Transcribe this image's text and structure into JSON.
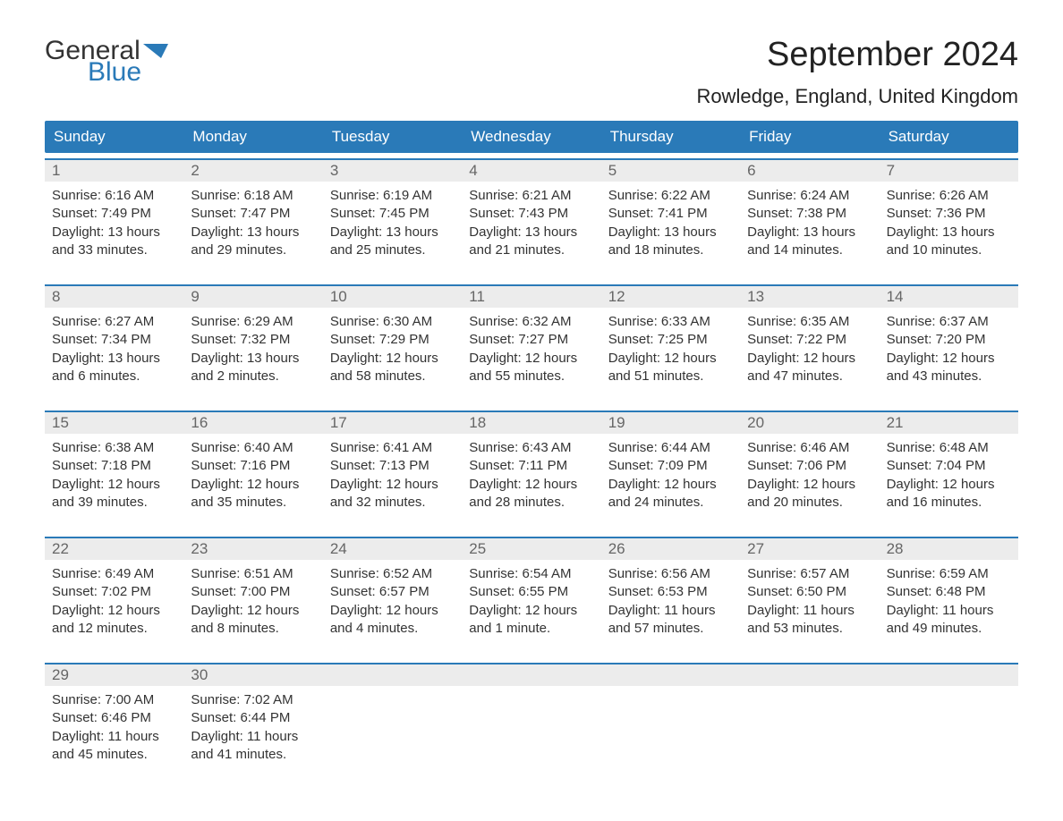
{
  "logo": {
    "top_text": "General",
    "bottom_text": "Blue",
    "flag_color": "#2a7ab8",
    "top_color": "#333333",
    "bottom_color": "#2a7ab8"
  },
  "title": "September 2024",
  "location": "Rowledge, England, United Kingdom",
  "weekday_header_bg": "#2a7ab8",
  "weekday_header_fg": "#ffffff",
  "day_number_bg": "#ececec",
  "day_number_border": "#2a7ab8",
  "text_color": "#333333",
  "weekdays": [
    "Sunday",
    "Monday",
    "Tuesday",
    "Wednesday",
    "Thursday",
    "Friday",
    "Saturday"
  ],
  "weeks": [
    [
      {
        "day": "1",
        "sunrise": "Sunrise: 6:16 AM",
        "sunset": "Sunset: 7:49 PM",
        "daylight1": "Daylight: 13 hours",
        "daylight2": "and 33 minutes."
      },
      {
        "day": "2",
        "sunrise": "Sunrise: 6:18 AM",
        "sunset": "Sunset: 7:47 PM",
        "daylight1": "Daylight: 13 hours",
        "daylight2": "and 29 minutes."
      },
      {
        "day": "3",
        "sunrise": "Sunrise: 6:19 AM",
        "sunset": "Sunset: 7:45 PM",
        "daylight1": "Daylight: 13 hours",
        "daylight2": "and 25 minutes."
      },
      {
        "day": "4",
        "sunrise": "Sunrise: 6:21 AM",
        "sunset": "Sunset: 7:43 PM",
        "daylight1": "Daylight: 13 hours",
        "daylight2": "and 21 minutes."
      },
      {
        "day": "5",
        "sunrise": "Sunrise: 6:22 AM",
        "sunset": "Sunset: 7:41 PM",
        "daylight1": "Daylight: 13 hours",
        "daylight2": "and 18 minutes."
      },
      {
        "day": "6",
        "sunrise": "Sunrise: 6:24 AM",
        "sunset": "Sunset: 7:38 PM",
        "daylight1": "Daylight: 13 hours",
        "daylight2": "and 14 minutes."
      },
      {
        "day": "7",
        "sunrise": "Sunrise: 6:26 AM",
        "sunset": "Sunset: 7:36 PM",
        "daylight1": "Daylight: 13 hours",
        "daylight2": "and 10 minutes."
      }
    ],
    [
      {
        "day": "8",
        "sunrise": "Sunrise: 6:27 AM",
        "sunset": "Sunset: 7:34 PM",
        "daylight1": "Daylight: 13 hours",
        "daylight2": "and 6 minutes."
      },
      {
        "day": "9",
        "sunrise": "Sunrise: 6:29 AM",
        "sunset": "Sunset: 7:32 PM",
        "daylight1": "Daylight: 13 hours",
        "daylight2": "and 2 minutes."
      },
      {
        "day": "10",
        "sunrise": "Sunrise: 6:30 AM",
        "sunset": "Sunset: 7:29 PM",
        "daylight1": "Daylight: 12 hours",
        "daylight2": "and 58 minutes."
      },
      {
        "day": "11",
        "sunrise": "Sunrise: 6:32 AM",
        "sunset": "Sunset: 7:27 PM",
        "daylight1": "Daylight: 12 hours",
        "daylight2": "and 55 minutes."
      },
      {
        "day": "12",
        "sunrise": "Sunrise: 6:33 AM",
        "sunset": "Sunset: 7:25 PM",
        "daylight1": "Daylight: 12 hours",
        "daylight2": "and 51 minutes."
      },
      {
        "day": "13",
        "sunrise": "Sunrise: 6:35 AM",
        "sunset": "Sunset: 7:22 PM",
        "daylight1": "Daylight: 12 hours",
        "daylight2": "and 47 minutes."
      },
      {
        "day": "14",
        "sunrise": "Sunrise: 6:37 AM",
        "sunset": "Sunset: 7:20 PM",
        "daylight1": "Daylight: 12 hours",
        "daylight2": "and 43 minutes."
      }
    ],
    [
      {
        "day": "15",
        "sunrise": "Sunrise: 6:38 AM",
        "sunset": "Sunset: 7:18 PM",
        "daylight1": "Daylight: 12 hours",
        "daylight2": "and 39 minutes."
      },
      {
        "day": "16",
        "sunrise": "Sunrise: 6:40 AM",
        "sunset": "Sunset: 7:16 PM",
        "daylight1": "Daylight: 12 hours",
        "daylight2": "and 35 minutes."
      },
      {
        "day": "17",
        "sunrise": "Sunrise: 6:41 AM",
        "sunset": "Sunset: 7:13 PM",
        "daylight1": "Daylight: 12 hours",
        "daylight2": "and 32 minutes."
      },
      {
        "day": "18",
        "sunrise": "Sunrise: 6:43 AM",
        "sunset": "Sunset: 7:11 PM",
        "daylight1": "Daylight: 12 hours",
        "daylight2": "and 28 minutes."
      },
      {
        "day": "19",
        "sunrise": "Sunrise: 6:44 AM",
        "sunset": "Sunset: 7:09 PM",
        "daylight1": "Daylight: 12 hours",
        "daylight2": "and 24 minutes."
      },
      {
        "day": "20",
        "sunrise": "Sunrise: 6:46 AM",
        "sunset": "Sunset: 7:06 PM",
        "daylight1": "Daylight: 12 hours",
        "daylight2": "and 20 minutes."
      },
      {
        "day": "21",
        "sunrise": "Sunrise: 6:48 AM",
        "sunset": "Sunset: 7:04 PM",
        "daylight1": "Daylight: 12 hours",
        "daylight2": "and 16 minutes."
      }
    ],
    [
      {
        "day": "22",
        "sunrise": "Sunrise: 6:49 AM",
        "sunset": "Sunset: 7:02 PM",
        "daylight1": "Daylight: 12 hours",
        "daylight2": "and 12 minutes."
      },
      {
        "day": "23",
        "sunrise": "Sunrise: 6:51 AM",
        "sunset": "Sunset: 7:00 PM",
        "daylight1": "Daylight: 12 hours",
        "daylight2": "and 8 minutes."
      },
      {
        "day": "24",
        "sunrise": "Sunrise: 6:52 AM",
        "sunset": "Sunset: 6:57 PM",
        "daylight1": "Daylight: 12 hours",
        "daylight2": "and 4 minutes."
      },
      {
        "day": "25",
        "sunrise": "Sunrise: 6:54 AM",
        "sunset": "Sunset: 6:55 PM",
        "daylight1": "Daylight: 12 hours",
        "daylight2": "and 1 minute."
      },
      {
        "day": "26",
        "sunrise": "Sunrise: 6:56 AM",
        "sunset": "Sunset: 6:53 PM",
        "daylight1": "Daylight: 11 hours",
        "daylight2": "and 57 minutes."
      },
      {
        "day": "27",
        "sunrise": "Sunrise: 6:57 AM",
        "sunset": "Sunset: 6:50 PM",
        "daylight1": "Daylight: 11 hours",
        "daylight2": "and 53 minutes."
      },
      {
        "day": "28",
        "sunrise": "Sunrise: 6:59 AM",
        "sunset": "Sunset: 6:48 PM",
        "daylight1": "Daylight: 11 hours",
        "daylight2": "and 49 minutes."
      }
    ],
    [
      {
        "day": "29",
        "sunrise": "Sunrise: 7:00 AM",
        "sunset": "Sunset: 6:46 PM",
        "daylight1": "Daylight: 11 hours",
        "daylight2": "and 45 minutes."
      },
      {
        "day": "30",
        "sunrise": "Sunrise: 7:02 AM",
        "sunset": "Sunset: 6:44 PM",
        "daylight1": "Daylight: 11 hours",
        "daylight2": "and 41 minutes."
      },
      {
        "empty": true
      },
      {
        "empty": true
      },
      {
        "empty": true
      },
      {
        "empty": true
      },
      {
        "empty": true
      }
    ]
  ]
}
